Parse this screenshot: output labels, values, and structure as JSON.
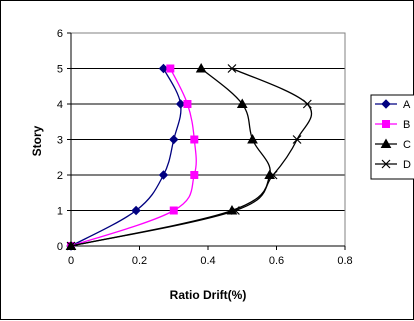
{
  "chart_data": {
    "type": "line",
    "title": "",
    "xlabel": "Ratio Drift(%)",
    "ylabel": "Story",
    "xlim": [
      0,
      0.8
    ],
    "ylim": [
      0,
      6
    ],
    "xticks": [
      "0",
      "0.2",
      "0.4",
      "0.6",
      "0.8"
    ],
    "yticks": [
      "0",
      "1",
      "2",
      "3",
      "4",
      "5",
      "6"
    ],
    "grid": "horizontal",
    "legend_position": "right",
    "series": [
      {
        "name": "A",
        "color": "#000080",
        "marker": "diamond",
        "x": [
          0,
          0.19,
          0.27,
          0.3,
          0.32,
          0.27
        ],
        "y": [
          0,
          1,
          2,
          3,
          4,
          5
        ]
      },
      {
        "name": "B",
        "color": "#ff00ff",
        "marker": "square",
        "x": [
          0,
          0.3,
          0.36,
          0.36,
          0.34,
          0.29
        ],
        "y": [
          0,
          1,
          2,
          3,
          4,
          5
        ]
      },
      {
        "name": "C",
        "color": "#000000",
        "marker": "triangle",
        "x": [
          0,
          0.47,
          0.58,
          0.53,
          0.5,
          0.38
        ],
        "y": [
          0,
          1,
          2,
          3,
          4,
          5
        ]
      },
      {
        "name": "D",
        "color": "#000000",
        "marker": "x",
        "x": [
          0,
          0.48,
          0.59,
          0.66,
          0.69,
          0.47
        ],
        "y": [
          0,
          1,
          2,
          3,
          4,
          5
        ]
      }
    ]
  }
}
